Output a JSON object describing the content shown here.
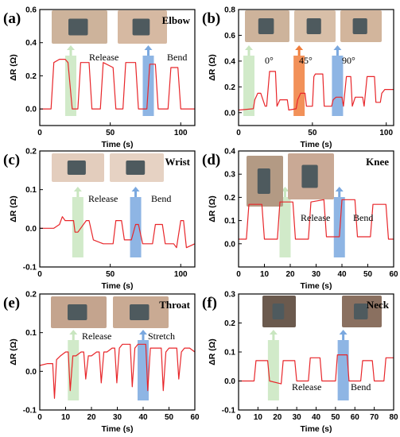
{
  "chart_data": [
    {
      "type": "line",
      "panel_label": "(a)",
      "title": "Elbow",
      "xlabel": "Time (s)",
      "ylabel": "ΔR (Ω)",
      "xlim": [
        0,
        110
      ],
      "ylim": [
        -0.1,
        0.6
      ],
      "xticks": [
        0,
        50,
        100
      ],
      "yticks": [
        0.0,
        0.2,
        0.4,
        0.6
      ],
      "color": "#e8262a",
      "x": [
        0,
        8,
        10,
        14,
        18,
        20,
        23,
        27,
        29,
        35,
        37,
        43,
        45,
        52,
        54,
        59,
        61,
        68,
        70,
        76,
        78,
        82,
        84,
        91,
        93,
        98,
        100,
        110
      ],
      "y": [
        0.0,
        0.0,
        0.28,
        0.3,
        0.3,
        0.28,
        0.0,
        0.0,
        0.28,
        0.28,
        0.0,
        0.0,
        0.28,
        0.25,
        0.0,
        0.0,
        0.28,
        0.28,
        0.0,
        0.0,
        0.27,
        0.27,
        0.0,
        0.0,
        0.25,
        0.25,
        0.0,
        0.0
      ],
      "annotations": [
        {
          "text": "Release",
          "x": 22,
          "color": "#c9e6c0"
        },
        {
          "text": "Bend",
          "x": 77,
          "color": "#7aa8df"
        }
      ]
    },
    {
      "type": "line",
      "panel_label": "(b)",
      "title": "",
      "xlabel": "Time (s)",
      "ylabel": "ΔR (Ω)",
      "xlim": [
        0,
        105
      ],
      "ylim": [
        -0.1,
        0.8
      ],
      "xticks": [
        0,
        50,
        100
      ],
      "yticks": [
        0.0,
        0.2,
        0.4,
        0.6,
        0.8
      ],
      "color": "#e8262a",
      "x": [
        0,
        10,
        11,
        13,
        15,
        18,
        19,
        21,
        25,
        26,
        28,
        33,
        34,
        39,
        40,
        42,
        45,
        46,
        50,
        51,
        52,
        57,
        58,
        63,
        64,
        66,
        70,
        71,
        73,
        76,
        77,
        79,
        84,
        85,
        87,
        92,
        93,
        96,
        97,
        99,
        105
      ],
      "y": [
        0.02,
        0.03,
        0.1,
        0.15,
        0.15,
        0.05,
        0.05,
        0.32,
        0.32,
        0.05,
        0.1,
        0.1,
        0.02,
        0.03,
        0.1,
        0.15,
        0.15,
        0.05,
        0.05,
        0.28,
        0.3,
        0.3,
        0.05,
        0.05,
        0.1,
        0.12,
        0.12,
        0.05,
        0.28,
        0.28,
        0.05,
        0.12,
        0.12,
        0.05,
        0.28,
        0.28,
        0.08,
        0.08,
        0.15,
        0.18,
        0.18
      ],
      "annotations": [
        {
          "text": "0°",
          "x": 7,
          "color": "#c9e6c0"
        },
        {
          "text": "45°",
          "x": 41,
          "color": "#f07e3c"
        },
        {
          "text": "90°",
          "x": 67,
          "color": "#7aa8df"
        }
      ]
    },
    {
      "type": "line",
      "panel_label": "(c)",
      "title": "Wrist",
      "xlabel": "Time (s)",
      "ylabel": "ΔR (Ω)",
      "xlim": [
        0,
        110
      ],
      "ylim": [
        -0.1,
        0.2
      ],
      "xticks": [
        0,
        50,
        100
      ],
      "yticks": [
        -0.1,
        0.0,
        0.1,
        0.2
      ],
      "color": "#e8262a",
      "x": [
        0,
        10,
        14,
        16,
        18,
        24,
        25,
        27,
        33,
        35,
        38,
        45,
        47,
        52,
        54,
        58,
        60,
        63,
        65,
        68,
        70,
        73,
        75,
        80,
        82,
        87,
        89,
        95,
        97,
        100,
        102,
        104,
        110
      ],
      "y": [
        0.0,
        0.0,
        0.01,
        0.03,
        0.02,
        0.02,
        -0.01,
        -0.01,
        0.02,
        0.02,
        -0.03,
        -0.04,
        -0.04,
        -0.04,
        0.02,
        0.02,
        -0.03,
        -0.03,
        -0.03,
        0.01,
        0.01,
        -0.04,
        -0.04,
        -0.04,
        0.01,
        0.01,
        -0.04,
        -0.04,
        -0.05,
        0.02,
        0.02,
        -0.05,
        -0.04
      ],
      "annotations": [
        {
          "text": "Release",
          "x": 27,
          "color": "#c9e6c0"
        },
        {
          "text": "Bend",
          "x": 68,
          "color": "#7aa8df"
        }
      ]
    },
    {
      "type": "line",
      "panel_label": "(d)",
      "title": "Knee",
      "xlabel": "Time (s)",
      "ylabel": "ΔR (Ω)",
      "xlim": [
        0,
        60
      ],
      "ylim": [
        -0.1,
        0.4
      ],
      "xticks": [
        0,
        10,
        20,
        30,
        40,
        50,
        60
      ],
      "yticks": [
        0.0,
        0.1,
        0.2,
        0.3,
        0.4
      ],
      "color": "#e8262a",
      "x": [
        0,
        3,
        4,
        9,
        10,
        15,
        16,
        21,
        22,
        27,
        28,
        33,
        34,
        39,
        40,
        45,
        46,
        51,
        52,
        57,
        58,
        60
      ],
      "y": [
        0.02,
        0.02,
        0.17,
        0.17,
        0.02,
        0.02,
        0.18,
        0.18,
        0.02,
        0.02,
        0.18,
        0.19,
        0.03,
        0.03,
        0.19,
        0.19,
        0.03,
        0.03,
        0.17,
        0.17,
        0.02,
        0.02
      ],
      "annotations": [
        {
          "text": "Release",
          "x": 18,
          "color": "#c9e6c0"
        },
        {
          "text": "Bend",
          "x": 39,
          "color": "#7aa8df"
        }
      ]
    },
    {
      "type": "line",
      "panel_label": "(e)",
      "title": "Throat",
      "xlabel": "Time (s)",
      "ylabel": "ΔR (Ω)",
      "xlim": [
        0,
        60
      ],
      "ylim": [
        -0.1,
        0.2
      ],
      "xticks": [
        0,
        10,
        20,
        30,
        40,
        50,
        60
      ],
      "yticks": [
        -0.1,
        0.0,
        0.1,
        0.2
      ],
      "color": "#e8262a",
      "x": [
        0,
        3,
        5,
        5.7,
        6.5,
        8,
        10,
        11,
        11.8,
        12.8,
        14,
        16,
        17,
        17.8,
        18.8,
        20,
        22,
        23,
        23.8,
        24.8,
        26,
        28,
        29,
        29.8,
        30.8,
        32,
        34,
        35,
        35.8,
        36.8,
        38,
        40,
        41,
        41.8,
        42.8,
        44,
        46,
        47,
        47.8,
        48.8,
        50,
        52,
        53,
        53.8,
        54.8,
        56,
        58,
        60
      ],
      "y": [
        0.015,
        0.02,
        0.02,
        -0.07,
        0.03,
        0.04,
        0.05,
        0.05,
        -0.05,
        0.04,
        0.04,
        0.05,
        0.05,
        -0.02,
        0.04,
        0.04,
        0.05,
        0.05,
        -0.03,
        0.05,
        0.05,
        0.06,
        0.06,
        -0.03,
        0.06,
        0.07,
        0.07,
        0.07,
        -0.04,
        0.06,
        0.07,
        0.07,
        0.07,
        -0.05,
        0.06,
        0.06,
        0.06,
        0.06,
        -0.05,
        0.05,
        0.06,
        0.06,
        0.06,
        -0.02,
        0.05,
        0.06,
        0.06,
        0.05
      ],
      "annotations": [
        {
          "text": "Release",
          "x": 13,
          "color": "#c9e6c0"
        },
        {
          "text": "Stretch",
          "x": 40,
          "color": "#7aa8df"
        }
      ]
    },
    {
      "type": "line",
      "panel_label": "(f)",
      "title": "Neck",
      "xlabel": "Time (s)",
      "ylabel": "ΔR (Ω)",
      "xlim": [
        0,
        80
      ],
      "ylim": [
        -0.1,
        0.3
      ],
      "xticks": [
        0,
        10,
        20,
        30,
        40,
        50,
        60,
        70,
        80
      ],
      "yticks": [
        -0.1,
        0.0,
        0.1,
        0.2,
        0.3
      ],
      "color": "#e8262a",
      "x": [
        0,
        8,
        9,
        15,
        16,
        22,
        23,
        29,
        30,
        36,
        37,
        42,
        43,
        50,
        51,
        56,
        57,
        63,
        64,
        69,
        70,
        75,
        76,
        80
      ],
      "y": [
        0.0,
        0.0,
        0.07,
        0.07,
        0.0,
        -0.01,
        0.07,
        0.07,
        0.0,
        0.0,
        0.08,
        0.08,
        0.0,
        0.0,
        0.09,
        0.09,
        0.0,
        0.0,
        0.07,
        0.07,
        0.0,
        0.0,
        0.08,
        0.08
      ],
      "annotations": [
        {
          "text": "Release",
          "x": 18,
          "color": "#c9e6c0"
        },
        {
          "text": "Bend",
          "x": 54,
          "color": "#7aa8df"
        }
      ]
    }
  ]
}
